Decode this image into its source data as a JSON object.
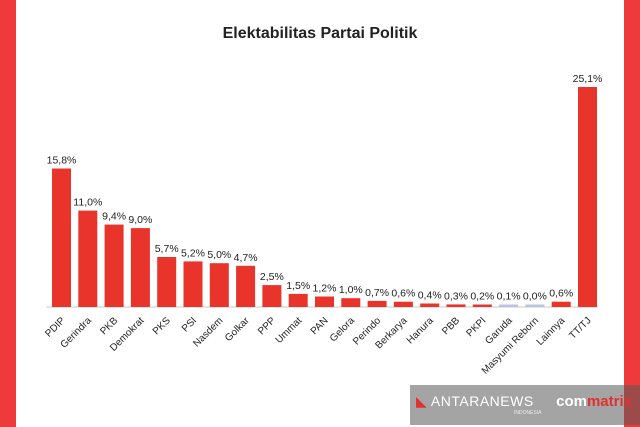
{
  "chart_data": {
    "type": "bar",
    "title": "Elektabilitas Partai Politik",
    "categories": [
      "PDIP",
      "Gerindra",
      "PKB",
      "Demokrat",
      "PKS",
      "PSI",
      "Nasdem",
      "Golkar",
      "PPP",
      "Ummat",
      "PAN",
      "Gelora",
      "Perindo",
      "Berkarya",
      "Hanura",
      "PBB",
      "PKPI",
      "Garuda",
      "Masyumi Reborn",
      "Lainnya",
      "TT/TJ"
    ],
    "values": [
      15.8,
      11.0,
      9.4,
      9.0,
      5.7,
      5.2,
      5.0,
      4.7,
      2.5,
      1.5,
      1.2,
      1.0,
      0.7,
      0.6,
      0.4,
      0.3,
      0.2,
      0.1,
      0.0,
      0.6,
      25.1
    ],
    "value_labels": [
      "15,8%",
      "11,0%",
      "9,4%",
      "9,0%",
      "5,7%",
      "5,2%",
      "5,0%",
      "4,7%",
      "2,5%",
      "1,5%",
      "1,2%",
      "1,0%",
      "0,7%",
      "0,6%",
      "0,4%",
      "0,3%",
      "0,2%",
      "0,1%",
      "0,0%",
      "0,6%",
      "25,1%"
    ],
    "ylim": [
      0,
      25.1
    ],
    "grid": false,
    "bar_color": "#e8342b",
    "highlight_color": "#b8c4dc"
  },
  "watermark": {
    "logo_mark": "◣",
    "logo_text": "ANTARANEWS",
    "logo_sub": "INDONESIA",
    "brand_prefix": "com",
    "brand_text": "matrix"
  },
  "colors": {
    "frame": "#ee3a3a",
    "panel": "#ffffff"
  }
}
